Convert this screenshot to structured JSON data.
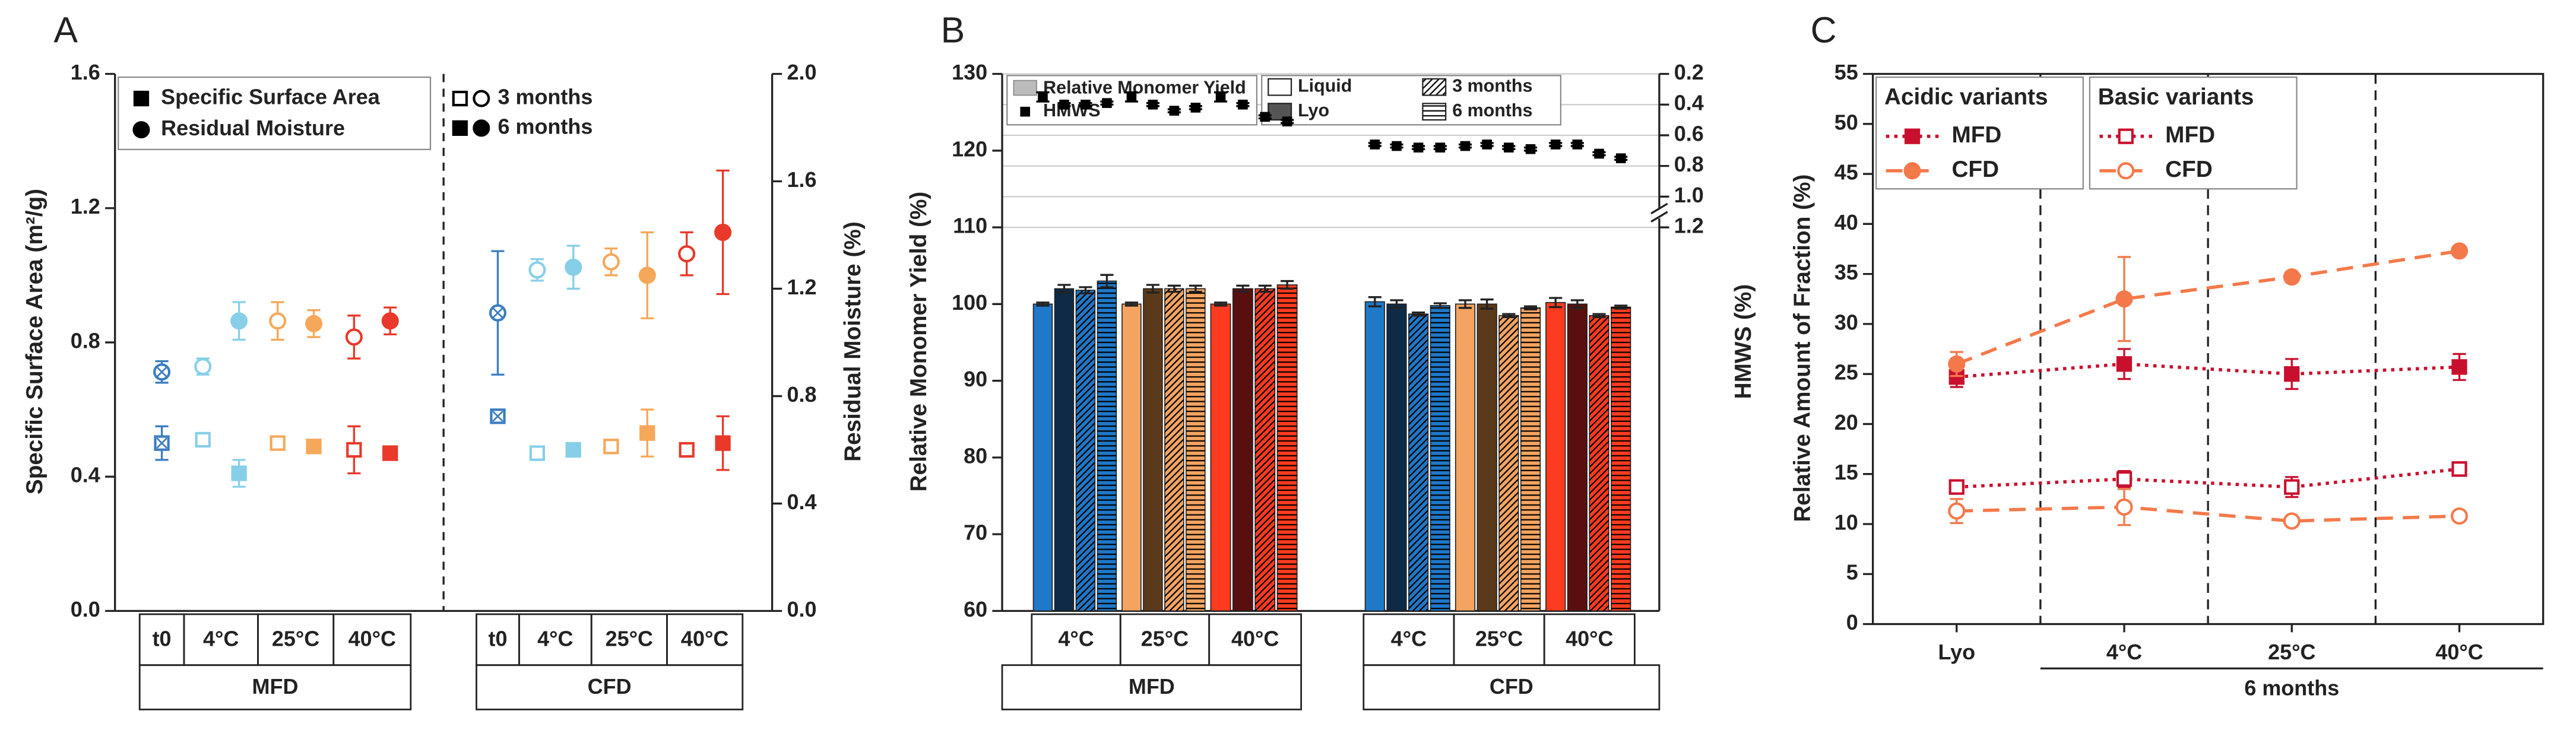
{
  "chart_data": [
    {
      "type": "scatter",
      "panel": "A",
      "ylabel": "Specific Surface Area (m²/g)",
      "y2label": "Residual Moisture (%)",
      "ylim": [
        0,
        1.6
      ],
      "yticks": [
        {
          "value": 0,
          "label": "0.0"
        },
        0.4,
        0.8,
        1.2,
        1.6
      ],
      "y2lim": [
        0,
        2.0
      ],
      "y2ticks": [
        {
          "value": 0,
          "label": "0.0"
        },
        0.4,
        0.8,
        1.2,
        1.6,
        {
          "value": 2.0,
          "label": "2.0"
        }
      ],
      "legend": {
        "markers": [
          "Specific Surface Area",
          "Residual Moisture"
        ],
        "periods": [
          "3 months",
          "6 months"
        ]
      },
      "groups": [
        {
          "label": "MFD",
          "conditions": [
            {
              "label": "t0",
              "color": "#3b7dc0",
              "ssa": [
                0.5
              ],
              "ssa_err": [
                0.05
              ],
              "rm": [
                0.89
              ],
              "rm_err": [
                0.04
              ]
            },
            {
              "label": "4°C",
              "color": "#87cfe8",
              "ssa": [
                0.51,
                0.41
              ],
              "ssa_err": [
                0.01,
                0.04
              ],
              "rm": [
                0.91,
                1.08
              ],
              "rm_err": [
                0.03,
                0.07
              ]
            },
            {
              "label": "25°C",
              "color": "#f5a85a",
              "ssa": [
                0.5,
                0.49
              ],
              "ssa_err": [
                0.01,
                0.01
              ],
              "rm": [
                1.08,
                1.07
              ],
              "rm_err": [
                0.07,
                0.05
              ]
            },
            {
              "label": "40°C",
              "color": "#e8392a",
              "ssa": [
                0.48,
                0.47
              ],
              "ssa_err": [
                0.07,
                0.02
              ],
              "rm": [
                1.02,
                1.08
              ],
              "rm_err": [
                0.08,
                0.05
              ]
            }
          ]
        },
        {
          "label": "CFD",
          "conditions": [
            {
              "label": "t0",
              "color": "#3b7dc0",
              "ssa": [
                0.58
              ],
              "ssa_err": [
                0.01
              ],
              "rm": [
                1.11
              ],
              "rm_err": [
                0.23
              ]
            },
            {
              "label": "4°C",
              "color": "#87cfe8",
              "ssa": [
                0.47,
                0.48
              ],
              "ssa_err": [
                0.01,
                0.01
              ],
              "rm": [
                1.27,
                1.28
              ],
              "rm_err": [
                0.04,
                0.08
              ]
            },
            {
              "label": "25°C",
              "color": "#f5a85a",
              "ssa": [
                0.49,
                0.53
              ],
              "ssa_err": [
                0.01,
                0.07
              ],
              "rm": [
                1.3,
                1.25
              ],
              "rm_err": [
                0.05,
                0.16
              ]
            },
            {
              "label": "40°C",
              "color": "#e8392a",
              "ssa": [
                0.48,
                0.5
              ],
              "ssa_err": [
                0.02,
                0.08
              ],
              "rm": [
                1.33,
                1.41
              ],
              "rm_err": [
                0.08,
                0.23
              ]
            }
          ]
        }
      ]
    },
    {
      "type": "bar",
      "panel": "B",
      "ylabel": "Relative Monomer Yield (%)",
      "y2label": "HMWS (%)",
      "ylim": [
        60,
        130
      ],
      "yticks": [
        60,
        70,
        80,
        90,
        100,
        110,
        120,
        130
      ],
      "y2lim": [
        0.2,
        1.2
      ],
      "y2ticks": [
        0.2,
        0.4,
        0.6,
        0.8,
        {
          "value": 1.0,
          "label": "1.0"
        },
        1.2
      ],
      "legend": {
        "kinds": [
          "Relative Monomer Yield",
          "HMWS"
        ],
        "states": [
          "Liquid",
          "Lyo"
        ],
        "periods": [
          "3 months",
          "6 months"
        ]
      },
      "groups": [
        {
          "label": "MFD",
          "conditions": [
            {
              "label": "4°C",
              "color": "#1f78c8",
              "dark": "#0e2a47",
              "values": [
                100,
                102,
                101.8,
                103
              ],
              "errors": [
                0.2,
                0.5,
                0.4,
                0.8
              ],
              "hmws": [
                0.35,
                0.4,
                0.4,
                0.39
              ],
              "hmws_err": [
                0.03,
                0.01,
                0.01,
                0.01
              ]
            },
            {
              "label": "25°C",
              "color": "#f4a460",
              "dark": "#5a3a1a",
              "values": [
                100,
                102,
                102,
                102
              ],
              "errors": [
                0.2,
                0.5,
                0.4,
                0.4
              ],
              "hmws": [
                0.35,
                0.4,
                0.44,
                0.42
              ],
              "hmws_err": [
                0.03,
                0.01,
                0.01,
                0.01
              ]
            },
            {
              "label": "40°C",
              "color": "#ff3b1f",
              "dark": "#5a0f0f",
              "values": [
                100,
                102,
                102,
                102.5
              ],
              "errors": [
                0.2,
                0.4,
                0.4,
                0.5
              ],
              "hmws": [
                0.35,
                0.4,
                0.48,
                0.51
              ],
              "hmws_err": [
                0.03,
                0.01,
                0.01,
                0.01
              ]
            }
          ]
        },
        {
          "label": "CFD",
          "conditions": [
            {
              "label": "4°C",
              "color": "#1f78c8",
              "dark": "#0e2a47",
              "values": [
                100.3,
                100,
                98.7,
                99.8
              ],
              "errors": [
                0.6,
                0.5,
                0.2,
                0.3
              ],
              "hmws": [
                0.66,
                0.67,
                0.68,
                0.68
              ],
              "hmws_err": [
                0.01,
                0.01,
                0.01,
                0.01
              ]
            },
            {
              "label": "25°C",
              "color": "#f4a460",
              "dark": "#5a3a1a",
              "values": [
                100,
                100,
                98.5,
                99.5
              ],
              "errors": [
                0.5,
                0.6,
                0.2,
                0.2
              ],
              "hmws": [
                0.67,
                0.66,
                0.68,
                0.69
              ],
              "hmws_err": [
                0.01,
                0.01,
                0.01,
                0.01
              ]
            },
            {
              "label": "40°C",
              "color": "#ff3b1f",
              "dark": "#5a0f0f",
              "values": [
                100.2,
                100,
                98.5,
                99.6
              ],
              "errors": [
                0.6,
                0.5,
                0.2,
                0.2
              ],
              "hmws": [
                0.66,
                0.66,
                0.72,
                0.75
              ],
              "hmws_err": [
                0.01,
                0.01,
                0.01,
                0.01
              ]
            }
          ]
        }
      ]
    },
    {
      "type": "line",
      "panel": "C",
      "ylabel": "Relative Amount of Fraction (%)",
      "categories": [
        "Lyo",
        "4°C",
        "25°C",
        "40°C"
      ],
      "period": "6 months",
      "ylim": [
        0,
        55
      ],
      "yticks": [
        0,
        5,
        10,
        15,
        20,
        25,
        30,
        35,
        40,
        45,
        50,
        55
      ],
      "legend_groups": [
        {
          "title": "Acidic variants",
          "series": [
            {
              "name": "MFD",
              "color": "#c8102e",
              "style": "dotted",
              "marker": "square",
              "filled": true,
              "values": [
                24.7,
                26,
                25,
                25.7
              ],
              "errors": [
                1,
                1.5,
                1.5,
                1.3
              ]
            },
            {
              "name": "CFD",
              "color": "#f4794a",
              "style": "dashed",
              "marker": "circle",
              "filled": true,
              "values": [
                26,
                32.5,
                34.7,
                37.3
              ],
              "errors": [
                1.2,
                4.2,
                0.5,
                0.3
              ]
            }
          ]
        },
        {
          "title": "Basic variants",
          "series": [
            {
              "name": "MFD",
              "color": "#c8102e",
              "style": "dotted",
              "marker": "square",
              "filled": false,
              "values": [
                13.7,
                14.5,
                13.7,
                15.5
              ],
              "errors": [
                0.5,
                0.8,
                1,
                0.5
              ]
            },
            {
              "name": "CFD",
              "color": "#f4794a",
              "style": "dashed",
              "marker": "circle",
              "filled": false,
              "values": [
                11.3,
                11.7,
                10.3,
                10.8
              ],
              "errors": [
                1.2,
                1.8,
                0.3,
                0.4
              ]
            }
          ]
        }
      ]
    }
  ]
}
